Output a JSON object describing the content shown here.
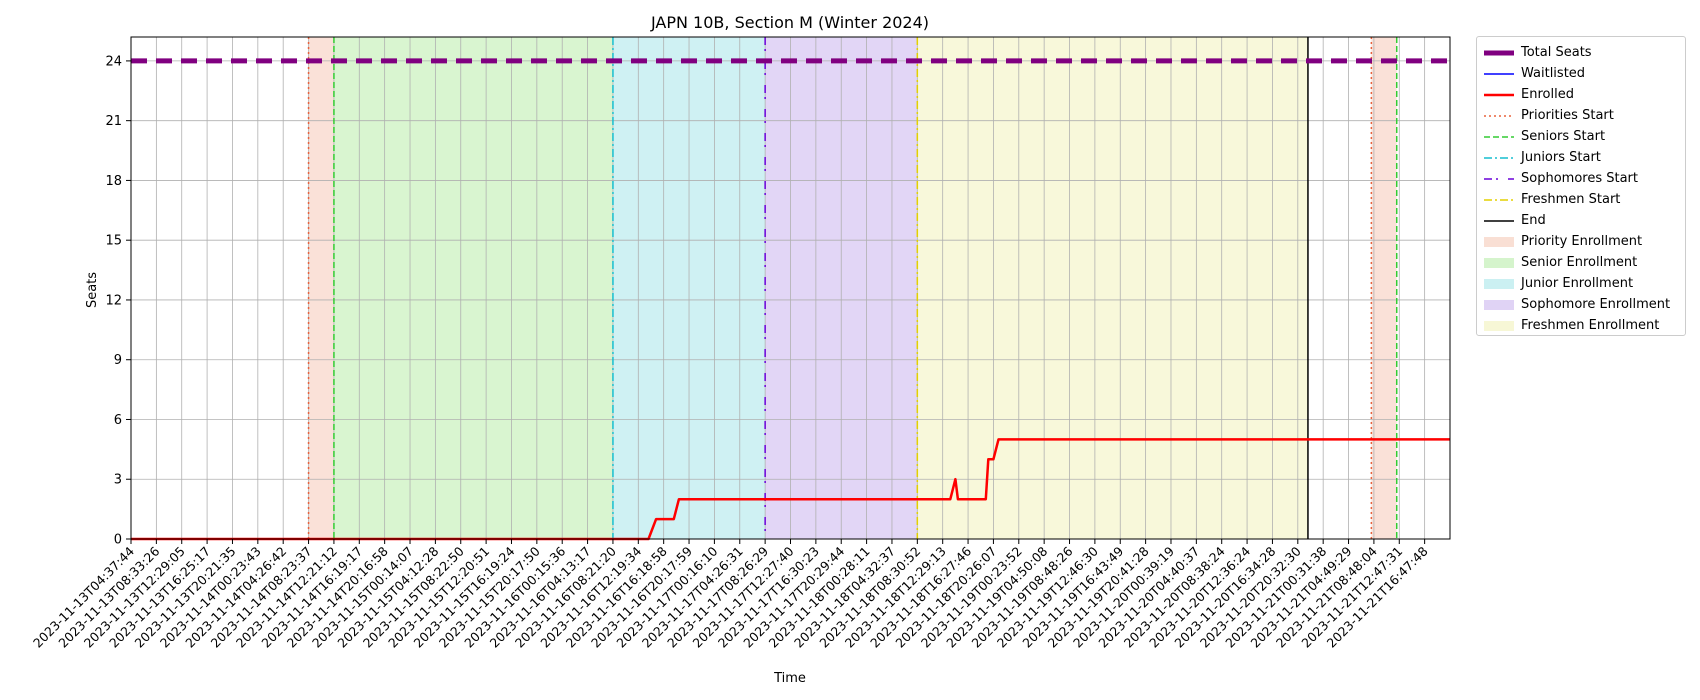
{
  "chart_data": {
    "type": "line",
    "title": "JAPN 10B, Section M (Winter 2024)",
    "xlabel": "Time",
    "ylabel": "Seats",
    "ylim": [
      0,
      25.2
    ],
    "yticks": [
      0,
      3,
      6,
      9,
      12,
      15,
      18,
      21,
      24
    ],
    "grid": true,
    "legend_position": "outside-right",
    "x_ticks": [
      "2023-11-13T04:37:44",
      "2023-11-13T08:33:26",
      "2023-11-13T12:29:05",
      "2023-11-13T16:25:17",
      "2023-11-13T20:21:35",
      "2023-11-14T00:23:43",
      "2023-11-14T04:26:42",
      "2023-11-14T08:23:37",
      "2023-11-14T12:21:12",
      "2023-11-14T16:19:17",
      "2023-11-14T20:16:58",
      "2023-11-15T00:14:07",
      "2023-11-15T04:12:28",
      "2023-11-15T08:22:50",
      "2023-11-15T12:20:51",
      "2023-11-15T16:19:24",
      "2023-11-15T20:17:50",
      "2023-11-16T00:15:36",
      "2023-11-16T04:13:17",
      "2023-11-16T08:21:20",
      "2023-11-16T12:19:34",
      "2023-11-16T16:18:58",
      "2023-11-16T20:17:59",
      "2023-11-17T00:16:10",
      "2023-11-17T04:26:31",
      "2023-11-17T08:26:29",
      "2023-11-17T12:27:40",
      "2023-11-17T16:30:23",
      "2023-11-17T20:29:44",
      "2023-11-18T00:28:11",
      "2023-11-18T04:32:37",
      "2023-11-18T08:30:52",
      "2023-11-18T12:29:13",
      "2023-11-18T16:27:46",
      "2023-11-18T20:26:07",
      "2023-11-19T00:23:52",
      "2023-11-19T04:50:08",
      "2023-11-19T08:48:26",
      "2023-11-19T12:46:30",
      "2023-11-19T16:43:49",
      "2023-11-19T20:41:28",
      "2023-11-20T00:39:19",
      "2023-11-20T04:40:37",
      "2023-11-20T08:38:24",
      "2023-11-20T12:36:24",
      "2023-11-20T16:34:28",
      "2023-11-20T20:32:30",
      "2023-11-21T00:31:38",
      "2023-11-21T04:49:29",
      "2023-11-21T08:48:04",
      "2023-11-21T12:47:31",
      "2023-11-21T16:47:48"
    ],
    "x_range": [
      0,
      52
    ],
    "series": [
      {
        "name": "Total Seats",
        "color": "#800080",
        "style": "dashed-thick",
        "points": [
          [
            0,
            24
          ],
          [
            52,
            24
          ]
        ]
      },
      {
        "name": "Waitlisted",
        "color": "#0000ff",
        "style": "solid",
        "points": []
      },
      {
        "name": "Enrolled",
        "color": "#ff0000",
        "style": "solid",
        "points": [
          [
            0,
            0
          ],
          [
            20.4,
            0
          ],
          [
            20.7,
            1
          ],
          [
            21.4,
            1
          ],
          [
            21.6,
            2
          ],
          [
            32.3,
            2
          ],
          [
            32.5,
            3
          ],
          [
            32.6,
            2
          ],
          [
            33.7,
            2
          ],
          [
            33.8,
            4
          ],
          [
            34.0,
            4
          ],
          [
            34.2,
            5
          ],
          [
            52,
            5
          ]
        ]
      }
    ],
    "vertical_lines": [
      {
        "name": "Priorities Start",
        "x": 7.0,
        "color": "#e8623c",
        "style": "dotted"
      },
      {
        "name": "Seniors Start",
        "x": 8.0,
        "color": "#33cc33",
        "style": "dashed"
      },
      {
        "name": "Juniors Start",
        "x": 19.0,
        "color": "#17becf",
        "style": "dashdot"
      },
      {
        "name": "Sophomores Start",
        "x": 25.0,
        "color": "#6a00d8",
        "style": "loose-dashdot"
      },
      {
        "name": "Freshmen Start",
        "x": 31.0,
        "color": "#e3d100",
        "style": "dashdot"
      },
      {
        "name": "End",
        "x": 46.4,
        "color": "#000000",
        "style": "solid"
      },
      {
        "name": "Priorities Start",
        "x": 48.9,
        "color": "#e8623c",
        "style": "dotted"
      },
      {
        "name": "Seniors Start",
        "x": 49.9,
        "color": "#33cc33",
        "style": "dashed"
      }
    ],
    "spans": [
      {
        "name": "Priority Enrollment",
        "from": 7.0,
        "to": 8.0,
        "color": "#f5c9b8"
      },
      {
        "name": "Senior Enrollment",
        "from": 8.0,
        "to": 19.0,
        "color": "#b9ecaa"
      },
      {
        "name": "Junior Enrollment",
        "from": 19.0,
        "to": 25.0,
        "color": "#a8e6ea"
      },
      {
        "name": "Sophomore Enrollment",
        "from": 25.0,
        "to": 31.0,
        "color": "#cbb5ef"
      },
      {
        "name": "Freshmen Enrollment",
        "from": 31.0,
        "to": 46.4,
        "color": "#f2f2bb"
      },
      {
        "name": "Priority Enrollment",
        "from": 48.9,
        "to": 49.9,
        "color": "#f5c9b8"
      }
    ],
    "legend": [
      {
        "label": "Total Seats",
        "kind": "line",
        "color": "#800080",
        "style": "dashed-thick"
      },
      {
        "label": "Waitlisted",
        "kind": "line",
        "color": "#0000ff",
        "style": "solid"
      },
      {
        "label": "Enrolled",
        "kind": "line",
        "color": "#ff0000",
        "style": "solid-thick"
      },
      {
        "label": "Priorities Start",
        "kind": "line",
        "color": "#e8623c",
        "style": "dotted"
      },
      {
        "label": "Seniors Start",
        "kind": "line",
        "color": "#33cc33",
        "style": "dashed"
      },
      {
        "label": "Juniors Start",
        "kind": "line",
        "color": "#17becf",
        "style": "dashdot"
      },
      {
        "label": "Sophomores Start",
        "kind": "line",
        "color": "#6a00d8",
        "style": "loose-dashdot"
      },
      {
        "label": "Freshmen Start",
        "kind": "line",
        "color": "#e3d100",
        "style": "dashdot"
      },
      {
        "label": "End",
        "kind": "line",
        "color": "#000000",
        "style": "solid"
      },
      {
        "label": "Priority Enrollment",
        "kind": "patch",
        "color": "#f5c9b8"
      },
      {
        "label": "Senior Enrollment",
        "kind": "patch",
        "color": "#b9ecaa"
      },
      {
        "label": "Junior Enrollment",
        "kind": "patch",
        "color": "#a8e6ea"
      },
      {
        "label": "Sophomore Enrollment",
        "kind": "patch",
        "color": "#cbb5ef"
      },
      {
        "label": "Freshmen Enrollment",
        "kind": "patch",
        "color": "#f2f2bb"
      }
    ]
  }
}
